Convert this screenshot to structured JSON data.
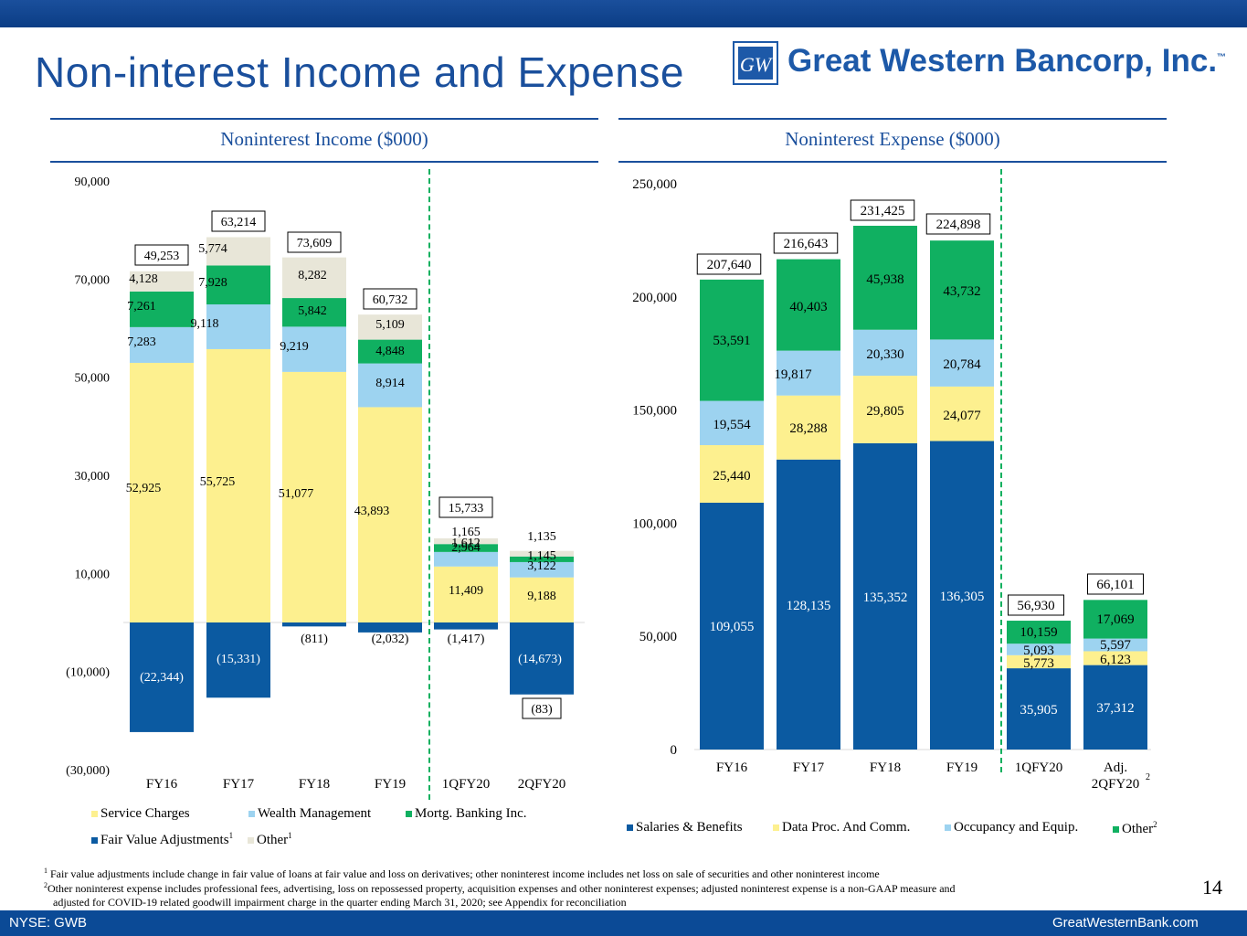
{
  "header": {
    "title": "Non-interest Income and Expense",
    "logo_text": "Great Western Bancorp, Inc.",
    "logo_tm": "™",
    "logo_monogram": "GW"
  },
  "colors": {
    "service": "#fdf08f",
    "wealth": "#9dd3f0",
    "mortg": "#10b061",
    "fva": "#0b5aa1",
    "other_income": "#e8e6d8",
    "salaries": "#0b5aa1",
    "dataproc": "#fdf08f",
    "occupancy": "#9dd3f0",
    "other_expense": "#10b061",
    "accent": "#1a4f9c"
  },
  "panels": {
    "income_title": "Noninterest Income ($000)",
    "expense_title": "Noninterest Expense ($000)"
  },
  "chart_data": [
    {
      "type": "bar",
      "title": "Noninterest Income ($000)",
      "stacked": true,
      "categories": [
        "FY16",
        "FY17",
        "FY18",
        "FY19",
        "1QFY20",
        "2QFY20"
      ],
      "yticks": [
        "90,000",
        "70,000",
        "50,000",
        "30,000",
        "10,000",
        "(10,000)",
        "(30,000)"
      ],
      "ylim": [
        -30000,
        90000
      ],
      "series": [
        {
          "name": "Service Charges",
          "key": "service",
          "values": [
            52925,
            55725,
            51077,
            43893,
            11409,
            9188
          ],
          "labels": [
            "52,925",
            "55,725",
            "51,077",
            "43,893",
            "11,409",
            "9,188"
          ]
        },
        {
          "name": "Wealth Management",
          "key": "wealth",
          "values": [
            7283,
            9118,
            9219,
            8914,
            2964,
            3122
          ],
          "labels": [
            "7,283",
            "9,118",
            "9,219",
            "8,914",
            "2,964",
            "3,122"
          ]
        },
        {
          "name": "Mortg. Banking Inc.",
          "key": "mortg",
          "values": [
            7261,
            7928,
            5842,
            4848,
            1612,
            1145
          ],
          "labels": [
            "7,261",
            "7,928",
            "5,842",
            "4,848",
            "1,612",
            "1,145"
          ]
        },
        {
          "name": "Other",
          "key": "other_income",
          "values": [
            4128,
            5774,
            8282,
            5109,
            1165,
            1135
          ],
          "labels": [
            "4,128",
            "5,774",
            "8,282",
            "5,109",
            "1,165",
            "1,135"
          ]
        },
        {
          "name": "Fair Value Adjustments",
          "key": "fva",
          "values": [
            -22344,
            -15331,
            -811,
            -2032,
            -1417,
            -14673
          ],
          "labels": [
            "(22,344)",
            "(15,331)",
            "(811)",
            "(2,032)",
            "(1,417)",
            "(14,673)"
          ]
        }
      ],
      "totals": [
        "49,253",
        "63,214",
        "73,609",
        "60,732",
        "15,733",
        "(83)"
      ],
      "total_values": [
        49253,
        63214,
        73609,
        60732,
        15733,
        -83
      ],
      "legend": [
        {
          "key": "service",
          "label": "Service Charges",
          "sup": ""
        },
        {
          "key": "wealth",
          "label": "Wealth Management",
          "sup": ""
        },
        {
          "key": "mortg",
          "label": "Mortg. Banking Inc.",
          "sup": ""
        },
        {
          "key": "fva",
          "label": "Fair Value Adjustments",
          "sup": "1"
        },
        {
          "key": "other_income",
          "label": "Other",
          "sup": "1"
        }
      ]
    },
    {
      "type": "bar",
      "title": "Noninterest Expense ($000)",
      "stacked": true,
      "categories": [
        "FY16",
        "FY17",
        "FY18",
        "FY19",
        "1QFY20",
        "Adj. 2QFY20"
      ],
      "category_lines": [
        [
          "FY16"
        ],
        [
          "FY17"
        ],
        [
          "FY18"
        ],
        [
          "FY19"
        ],
        [
          "1QFY20"
        ],
        [
          "Adj.",
          "2QFY20"
        ]
      ],
      "category_sup": "2",
      "yticks": [
        "250,000",
        "200,000",
        "150,000",
        "100,000",
        "50,000",
        "0"
      ],
      "ylim": [
        0,
        250000
      ],
      "series": [
        {
          "name": "Salaries & Benefits",
          "key": "salaries",
          "values": [
            109055,
            128135,
            135352,
            136305,
            35905,
            37312
          ],
          "labels": [
            "109,055",
            "128,135",
            "135,352",
            "136,305",
            "35,905",
            "37,312"
          ]
        },
        {
          "name": "Data Proc. And Comm.",
          "key": "dataproc",
          "values": [
            25440,
            28288,
            29805,
            24077,
            5773,
            6123
          ],
          "labels": [
            "25,440",
            "28,288",
            "29,805",
            "24,077",
            "5,773",
            "6,123"
          ]
        },
        {
          "name": "Occupancy and Equip.",
          "key": "occupancy",
          "values": [
            19554,
            19817,
            20330,
            20784,
            5093,
            5597
          ],
          "labels": [
            "19,554",
            "19,817",
            "20,330",
            "20,784",
            "5,093",
            "5,597"
          ]
        },
        {
          "name": "Other",
          "key": "other_expense",
          "values": [
            53591,
            40403,
            45938,
            43732,
            10159,
            17069
          ],
          "labels": [
            "53,591",
            "40,403",
            "45,938",
            "43,732",
            "10,159",
            "17,069"
          ]
        }
      ],
      "totals": [
        "207,640",
        "216,643",
        "231,425",
        "224,898",
        "56,930",
        "66,101"
      ],
      "total_values": [
        207640,
        216643,
        231425,
        224898,
        56930,
        66101
      ],
      "legend": [
        {
          "key": "salaries",
          "label": "Salaries & Benefits",
          "sup": ""
        },
        {
          "key": "dataproc",
          "label": "Data Proc. And Comm.",
          "sup": ""
        },
        {
          "key": "occupancy",
          "label": "Occupancy and Equip.",
          "sup": ""
        },
        {
          "key": "other_expense",
          "label": "Other",
          "sup": "2"
        }
      ]
    }
  ],
  "footnotes": {
    "n1_mark": "1",
    "n1": "Fair value adjustments include change in fair value of loans at fair value and loss on derivatives; other noninterest income includes net loss on sale of securities and other noninterest income",
    "n2_mark": "2",
    "n2a": "Other noninterest expense includes professional fees, advertising, loss on repossessed property, acquisition expenses and other noninterest expenses; adjusted noninterest expense is a non-GAAP measure and",
    "n2b": "adjusted for COVID-19 related goodwill impairment charge in the quarter ending March 31, 2020; see Appendix for reconciliation"
  },
  "page_number": "14",
  "footer": {
    "ticker": "NYSE: GWB",
    "site": "GreatWesternBank.com"
  }
}
